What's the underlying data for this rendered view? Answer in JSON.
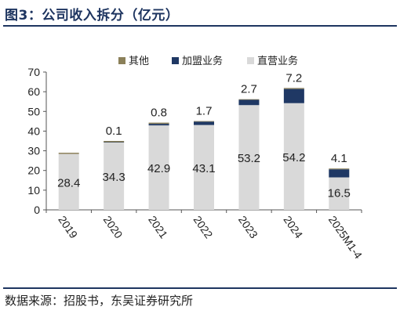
{
  "figure": {
    "title": "图3：公司收入拆分（亿元）",
    "source": "数据来源：招股书，东吴证券研究所"
  },
  "colors": {
    "direct": "#d9d9d9",
    "franchise": "#1f3864",
    "other": "#8b8059",
    "title": "#1e3560",
    "axis": "#555555"
  },
  "chart_data": {
    "type": "bar",
    "stacked": true,
    "categories": [
      "2019",
      "2020",
      "2021",
      "2022",
      "2023",
      "2024",
      "2025M1-4"
    ],
    "series": [
      {
        "name": "直营业务",
        "values": [
          28.4,
          34.3,
          42.9,
          43.1,
          53.2,
          54.2,
          16.5
        ],
        "labels": [
          "28.4",
          "34.3",
          "42.9",
          "43.1",
          "53.2",
          "54.2",
          "16.5"
        ]
      },
      {
        "name": "加盟业务",
        "values": [
          0,
          0.1,
          0.8,
          1.7,
          2.7,
          7.2,
          4.1
        ],
        "labels": [
          "",
          "0.1",
          "0.8",
          "1.7",
          "2.7",
          "7.2",
          "4.1"
        ]
      },
      {
        "name": "其他",
        "values": [
          0.6,
          0.6,
          0.6,
          0.3,
          0.3,
          0.5,
          0.4
        ]
      }
    ],
    "legend_order": [
      "其他",
      "加盟业务",
      "直营业务"
    ],
    "legend_position": "top",
    "yticks": [
      "0",
      "10",
      "20",
      "30",
      "40",
      "50",
      "60",
      "70"
    ],
    "ylim": [
      0,
      70
    ],
    "grid": false
  }
}
